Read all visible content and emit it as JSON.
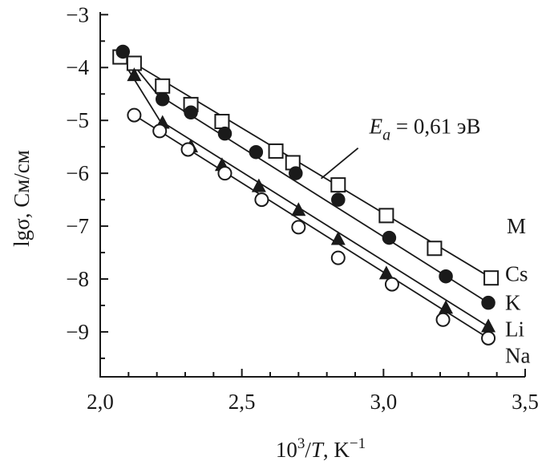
{
  "chart_data": {
    "type": "scatter",
    "xlabel_parts": [
      "10",
      "3",
      "/",
      "T",
      ", K",
      "−1"
    ],
    "ylabel": "lgσ, См/см",
    "xlim": [
      2.0,
      3.5
    ],
    "ylim": [
      -9.85,
      -2.95
    ],
    "xticks": [
      2.0,
      2.5,
      3.0,
      3.5
    ],
    "xtick_labels": [
      "2,0",
      "2,5",
      "3,0",
      "3,5"
    ],
    "yticks": [
      -3,
      -4,
      -5,
      -6,
      -7,
      -8,
      -9
    ],
    "ytick_labels": [
      "−3",
      "−4",
      "−5",
      "−6",
      "−7",
      "−8",
      "−9"
    ],
    "grid": false,
    "legend_title": "M",
    "annotation": {
      "text_parts": [
        "E",
        "a",
        " = 0,61 эВ"
      ],
      "arrow_to": [
        2.78,
        -6.1
      ],
      "text_at": [
        2.95,
        -5.25
      ]
    },
    "series": [
      {
        "name": "Cs",
        "marker": "square-open",
        "x": [
          2.07,
          2.12,
          2.22,
          2.32,
          2.43,
          2.62,
          2.68,
          2.84,
          3.01,
          3.18,
          3.38
        ],
        "y": [
          -3.8,
          -3.92,
          -4.35,
          -4.7,
          -5.02,
          -5.58,
          -5.8,
          -6.22,
          -6.8,
          -7.42,
          -7.98
        ],
        "fit": [
          [
            2.07,
            -3.8
          ],
          [
            2.12,
            -3.92
          ],
          [
            3.38,
            -7.98
          ]
        ]
      },
      {
        "name": "K",
        "marker": "circle-filled",
        "x": [
          2.08,
          2.22,
          2.32,
          2.44,
          2.55,
          2.69,
          2.84,
          3.02,
          3.22,
          3.37
        ],
        "y": [
          -3.7,
          -4.6,
          -4.85,
          -5.25,
          -5.6,
          -6.0,
          -6.5,
          -7.22,
          -7.95,
          -8.45
        ],
        "fit": [
          [
            2.08,
            -3.7
          ],
          [
            2.2,
            -4.5
          ],
          [
            3.37,
            -8.45
          ]
        ]
      },
      {
        "name": "Li",
        "marker": "triangle-filled",
        "x": [
          2.12,
          2.22,
          2.32,
          2.43,
          2.56,
          2.7,
          2.84,
          3.01,
          3.22,
          3.37
        ],
        "y": [
          -4.15,
          -5.05,
          -5.5,
          -5.85,
          -6.25,
          -6.7,
          -7.25,
          -7.9,
          -8.55,
          -8.9
        ],
        "fit": [
          [
            2.1,
            -4.05
          ],
          [
            2.21,
            -5.0
          ],
          [
            3.37,
            -8.9
          ]
        ]
      },
      {
        "name": "Na",
        "marker": "circle-open",
        "x": [
          2.12,
          2.21,
          2.31,
          2.44,
          2.57,
          2.7,
          2.84,
          3.03,
          3.21,
          3.37
        ],
        "y": [
          -4.9,
          -5.2,
          -5.55,
          -6.0,
          -6.5,
          -7.02,
          -7.6,
          -8.1,
          -8.77,
          -9.12
        ],
        "fit": [
          [
            2.12,
            -4.9
          ],
          [
            3.37,
            -9.12
          ]
        ]
      }
    ]
  }
}
